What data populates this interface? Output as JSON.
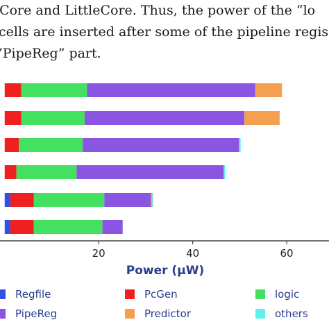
{
  "paragraph": {
    "lines": [
      "rCore and LittleCore. Thus, the power of the “lo",
      "cells are inserted after some of the pipeline regis",
      "“PipeReg” part."
    ]
  },
  "colors": {
    "Regfile": "#3050e8",
    "PcGen": "#f02020",
    "logic": "#44e060",
    "PipeReg": "#8a55e0",
    "Predictor": "#f5a050",
    "others": "#60f0f0"
  },
  "chart_data": {
    "type": "bar",
    "orientation": "horizontal",
    "stacked": true,
    "xlabel": "Power (μW)",
    "ylabel": "",
    "xlim": [
      -1,
      69
    ],
    "xticks": [
      20,
      40,
      60
    ],
    "grid": false,
    "legend_position": "bottom",
    "bars": [
      {
        "Regfile": 0,
        "PcGen": 3.5,
        "logic": 14.0,
        "PipeReg": 35.8,
        "Predictor": 5.7,
        "others": 0
      },
      {
        "Regfile": 0,
        "PcGen": 3.5,
        "logic": 13.5,
        "PipeReg": 34.0,
        "Predictor": 7.5,
        "others": 0
      },
      {
        "Regfile": 0,
        "PcGen": 3.0,
        "logic": 13.6,
        "PipeReg": 33.2,
        "Predictor": 0.2,
        "others": 0.2
      },
      {
        "Regfile": 0,
        "PcGen": 2.5,
        "logic": 12.8,
        "PipeReg": 31.3,
        "Predictor": 0,
        "others": 0.3
      },
      {
        "Regfile": 1.2,
        "PcGen": 5.0,
        "logic": 15.0,
        "PipeReg": 9.9,
        "Predictor": 0.3,
        "others": 0.2
      },
      {
        "Regfile": 1.2,
        "PcGen": 5.0,
        "logic": 14.6,
        "PipeReg": 4.3,
        "Predictor": 0,
        "others": 0
      }
    ],
    "series": [
      {
        "name": "Regfile"
      },
      {
        "name": "PcGen"
      },
      {
        "name": "logic"
      },
      {
        "name": "PipeReg"
      },
      {
        "name": "Predictor"
      },
      {
        "name": "others"
      }
    ]
  }
}
